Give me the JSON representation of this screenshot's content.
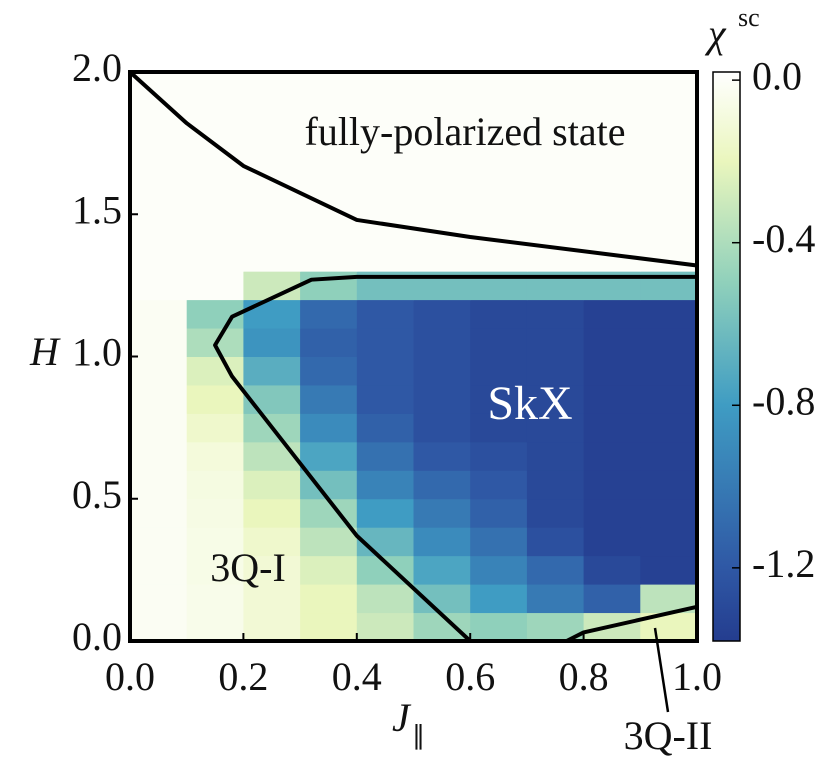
{
  "chart_data": {
    "type": "heatmap",
    "xlabel": "J",
    "xlabel_sub": "∥",
    "ylabel": "H",
    "xlim": [
      0,
      1.0
    ],
    "ylim": [
      0,
      2.0
    ],
    "xticks": [
      {
        "value": 0,
        "label": "0.0"
      },
      {
        "value": 0.2,
        "label": "0.2"
      },
      {
        "value": 0.4,
        "label": "0.4"
      },
      {
        "value": 0.6,
        "label": "0.6"
      },
      {
        "value": 0.8,
        "label": "0.8"
      },
      {
        "value": 1.0,
        "label": "1.0"
      }
    ],
    "yticks": [
      {
        "value": 0,
        "label": "0.0"
      },
      {
        "value": 0.5,
        "label": "0.5"
      },
      {
        "value": 1.0,
        "label": "1.0"
      },
      {
        "value": 1.5,
        "label": "1.5"
      },
      {
        "value": 2.0,
        "label": "2.0"
      }
    ],
    "xbins": [
      0,
      0.1,
      0.2,
      0.3,
      0.4,
      0.5,
      0.6,
      0.7,
      0.8,
      0.9,
      1.0
    ],
    "ybins": [
      0,
      0.1,
      0.2,
      0.3,
      0.4,
      0.5,
      0.6,
      0.7,
      0.8,
      0.9,
      1.0,
      1.1,
      1.2,
      1.3,
      1.4,
      1.5,
      1.6,
      1.7,
      1.8,
      1.9,
      2.0
    ],
    "z": [
      [
        -0.02,
        -0.05,
        -0.12,
        -0.2,
        -0.3,
        -0.45,
        -0.5,
        -0.45,
        -0.3,
        -0.2
      ],
      [
        -0.02,
        -0.05,
        -0.12,
        -0.2,
        -0.35,
        -0.6,
        -0.8,
        -1.0,
        -1.15,
        -0.35
      ],
      [
        -0.02,
        -0.06,
        -0.12,
        -0.25,
        -0.5,
        -0.75,
        -0.95,
        -1.1,
        -1.3,
        -1.35
      ],
      [
        -0.02,
        -0.06,
        -0.15,
        -0.35,
        -0.65,
        -0.9,
        -1.05,
        -1.25,
        -1.35,
        -1.35
      ],
      [
        -0.02,
        -0.07,
        -0.2,
        -0.45,
        -0.8,
        -1.0,
        -1.15,
        -1.3,
        -1.35,
        -1.35
      ],
      [
        -0.02,
        -0.08,
        -0.25,
        -0.6,
        -0.95,
        -1.1,
        -1.2,
        -1.3,
        -1.35,
        -1.35
      ],
      [
        -0.02,
        -0.1,
        -0.35,
        -0.75,
        -1.05,
        -1.2,
        -1.25,
        -1.3,
        -1.35,
        -1.35
      ],
      [
        -0.02,
        -0.15,
        -0.45,
        -0.9,
        -1.15,
        -1.25,
        -1.3,
        -1.3,
        -1.35,
        -1.35
      ],
      [
        -0.02,
        -0.2,
        -0.55,
        -1.0,
        -1.2,
        -1.25,
        -1.3,
        -1.3,
        -1.35,
        -1.35
      ],
      [
        -0.02,
        -0.25,
        -0.7,
        -1.1,
        -1.2,
        -1.25,
        -1.3,
        -1.3,
        -1.35,
        -1.35
      ],
      [
        -0.02,
        -0.4,
        -0.85,
        -1.15,
        -1.2,
        -1.25,
        -1.3,
        -1.3,
        -1.35,
        -1.35
      ],
      [
        -0.02,
        -0.5,
        -0.8,
        -1.1,
        -1.2,
        -1.25,
        -1.3,
        -1.3,
        -1.35,
        -1.35
      ],
      [
        0,
        0,
        -0.3,
        -0.5,
        -0.6,
        -0.6,
        -0.6,
        -0.6,
        -0.6,
        -0.6
      ],
      [
        0,
        0,
        0,
        0,
        0,
        0,
        0,
        0,
        0,
        0
      ],
      [
        0,
        0,
        0,
        0,
        0,
        0,
        0,
        0,
        0,
        0
      ],
      [
        0,
        0,
        0,
        0,
        0,
        0,
        0,
        0,
        0,
        0
      ],
      [
        0,
        0,
        0,
        0,
        0,
        0,
        0,
        0,
        0,
        0
      ],
      [
        0,
        0,
        0,
        0,
        0,
        0,
        0,
        0,
        0,
        0
      ],
      [
        0,
        0,
        0,
        0,
        0,
        0,
        0,
        0,
        0,
        0
      ],
      [
        0,
        0,
        0,
        0,
        0,
        0,
        0,
        0,
        0,
        0
      ]
    ],
    "colormap": [
      {
        "value": -1.38,
        "color": "#243d8f"
      },
      {
        "value": -1.2,
        "color": "#2f58a5"
      },
      {
        "value": -0.8,
        "color": "#3f9cc3"
      },
      {
        "value": -0.5,
        "color": "#8fd0bb"
      },
      {
        "value": -0.2,
        "color": "#eaf6bd"
      },
      {
        "value": 0.02,
        "color": "#ffffff"
      }
    ],
    "colorbar": {
      "label": "χ",
      "label_sup": "sc",
      "clim": [
        -1.38,
        0.02
      ],
      "ticks": [
        {
          "value": 0,
          "label": "0.0"
        },
        {
          "value": -0.4,
          "label": "-0.4"
        },
        {
          "value": -0.8,
          "label": "-0.8"
        },
        {
          "value": -1.2,
          "label": "-1.2"
        }
      ]
    },
    "boundaries": [
      {
        "x": [
          0,
          0.1,
          0.2,
          0.4,
          0.6,
          1.0
        ],
        "y": [
          2.0,
          1.82,
          1.67,
          1.48,
          1.42,
          1.32
        ]
      },
      {
        "x": [
          1.0,
          0.4,
          0.32,
          0.18,
          0.15,
          0.18,
          0.4,
          0.6
        ],
        "y": [
          1.28,
          1.28,
          1.27,
          1.14,
          1.04,
          0.93,
          0.37,
          0.0
        ]
      },
      {
        "x": [
          0.77,
          0.8,
          1.0
        ],
        "y": [
          0.0,
          0.03,
          0.12
        ]
      }
    ],
    "annotations": [
      "fully-polarized state",
      "SkX",
      "3Q-I",
      "3Q-II"
    ]
  }
}
